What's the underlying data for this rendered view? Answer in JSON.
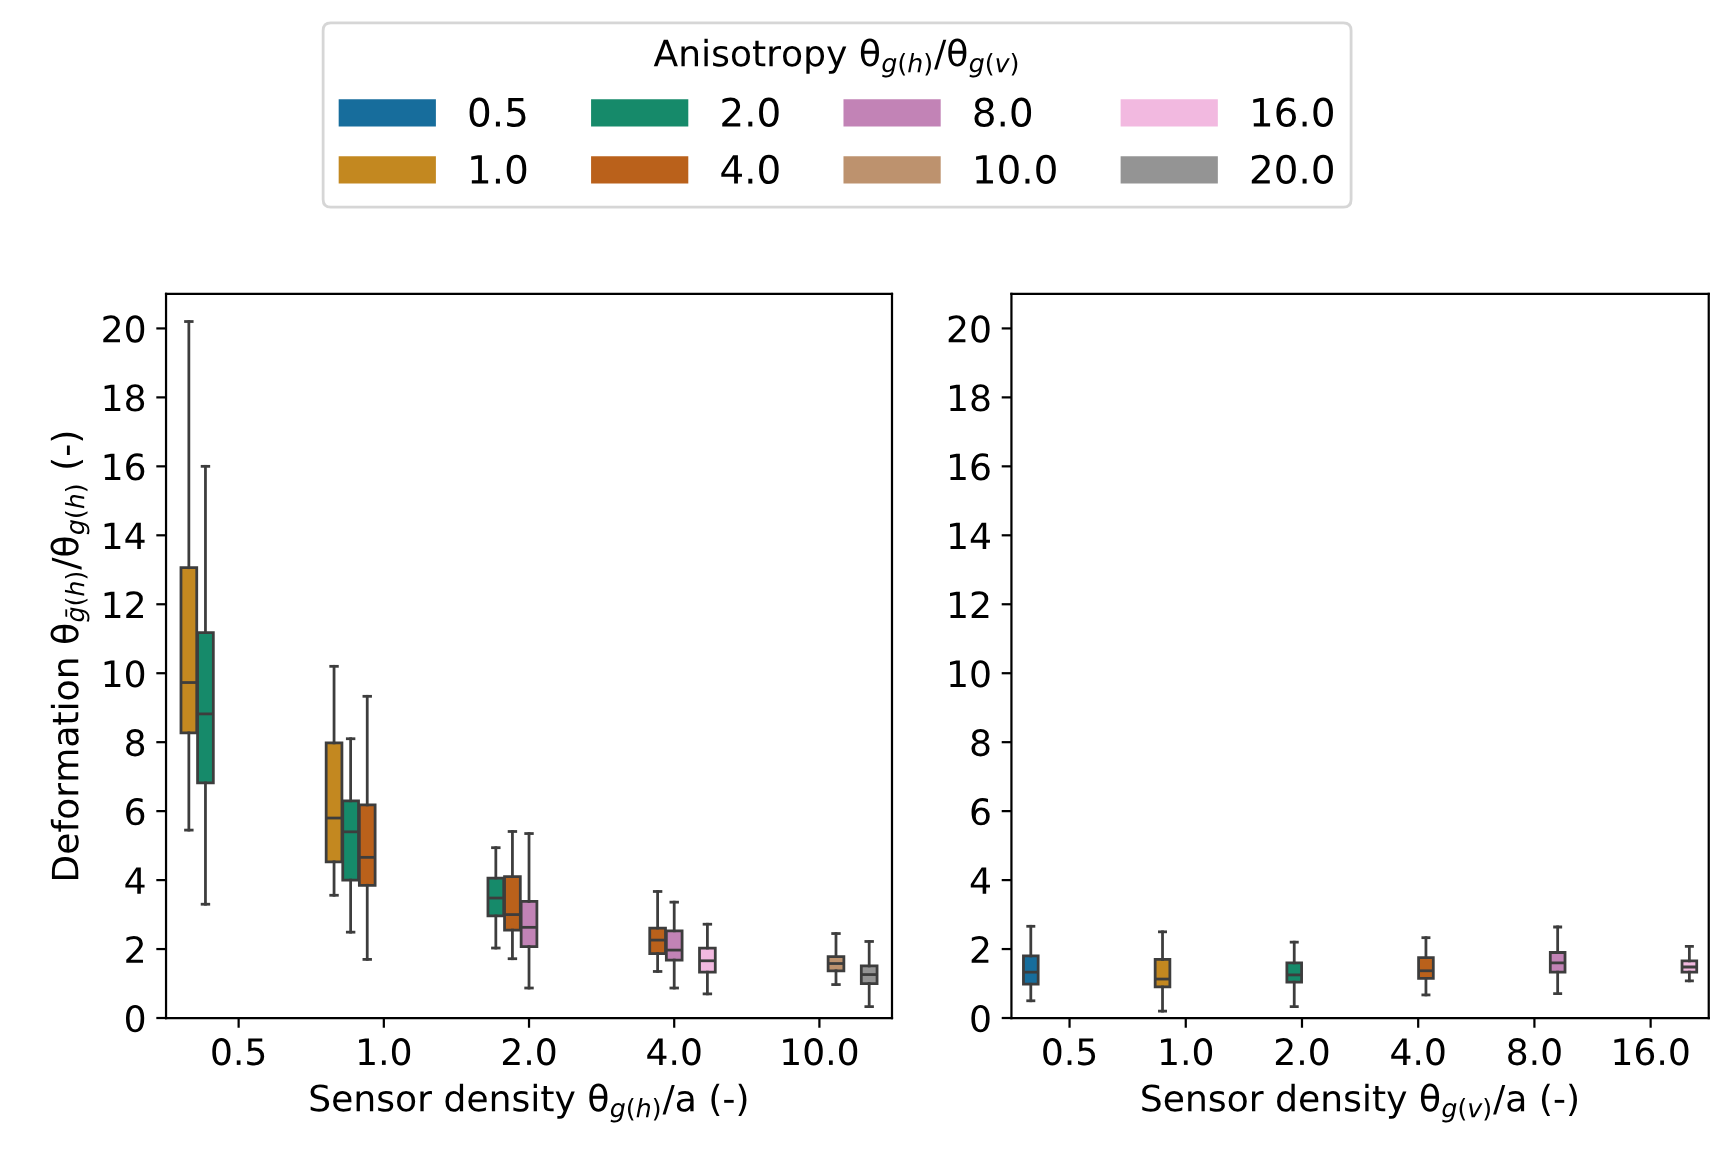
{
  "chart_data": [
    {
      "type": "box",
      "xlabel": "Sensor density θ$_{g(h)}$/a (-)",
      "ylabel": "Deformation θ$_{ḡ(h)}$/θ$_{g(h)}$ (-)",
      "legend_title": "Anisotropy θ$_{g(h)}$/θ$_{g(v)}$",
      "legend": "top",
      "grid": false,
      "ylim": [
        0,
        21
      ],
      "yticks": [
        0,
        2,
        4,
        6,
        8,
        10,
        12,
        14,
        16,
        18,
        20
      ],
      "categories": [
        "0.5",
        "1.0",
        "2.0",
        "4.0",
        "10.0"
      ],
      "series": [
        {
          "name": "0.5",
          "color": "#176d9c",
          "boxes": [
            null,
            null,
            null,
            null,
            null
          ]
        },
        {
          "name": "1.0",
          "color": "#c38820",
          "boxes": [
            {
              "low": 5.45,
              "q1": 8.27,
              "median": 9.73,
              "q3": 13.06,
              "high": 20.2
            },
            {
              "low": 3.56,
              "q1": 4.53,
              "median": 5.8,
              "q3": 7.98,
              "high": 10.2
            },
            null,
            null,
            null
          ]
        },
        {
          "name": "2.0",
          "color": "#168a6a",
          "boxes": [
            {
              "low": 3.3,
              "q1": 6.82,
              "median": 8.82,
              "q3": 11.18,
              "high": 16.0
            },
            {
              "low": 2.49,
              "q1": 4.0,
              "median": 5.4,
              "q3": 6.3,
              "high": 8.1
            },
            {
              "low": 2.03,
              "q1": 2.96,
              "median": 3.48,
              "q3": 4.06,
              "high": 4.94
            },
            null,
            null
          ]
        },
        {
          "name": "4.0",
          "color": "#ba611b",
          "boxes": [
            null,
            {
              "low": 1.7,
              "q1": 3.85,
              "median": 4.66,
              "q3": 6.18,
              "high": 9.33
            },
            {
              "low": 1.72,
              "q1": 2.55,
              "median": 3.0,
              "q3": 4.1,
              "high": 5.41
            },
            {
              "low": 1.35,
              "q1": 1.87,
              "median": 2.26,
              "q3": 2.61,
              "high": 3.67
            },
            null
          ]
        },
        {
          "name": "8.0",
          "color": "#c283b6",
          "boxes": [
            null,
            null,
            {
              "low": 0.87,
              "q1": 2.07,
              "median": 2.63,
              "q3": 3.38,
              "high": 5.35
            },
            {
              "low": 0.87,
              "q1": 1.68,
              "median": 1.97,
              "q3": 2.53,
              "high": 3.36
            },
            null
          ]
        },
        {
          "name": "10.0",
          "color": "#bd926e",
          "boxes": [
            null,
            null,
            null,
            null,
            {
              "low": 0.97,
              "q1": 1.37,
              "median": 1.58,
              "q3": 1.78,
              "high": 2.45
            }
          ]
        },
        {
          "name": "16.0",
          "color": "#f2b9e0",
          "boxes": [
            null,
            null,
            null,
            {
              "low": 0.7,
              "q1": 1.33,
              "median": 1.66,
              "q3": 2.03,
              "high": 2.72
            },
            null
          ]
        },
        {
          "name": "20.0",
          "color": "#949494",
          "boxes": [
            null,
            null,
            null,
            null,
            {
              "low": 0.33,
              "q1": 1.0,
              "median": 1.26,
              "q3": 1.51,
              "high": 2.22
            }
          ]
        }
      ]
    },
    {
      "type": "box",
      "xlabel": "Sensor density θ$_{g(v)}$/a (-)",
      "grid": false,
      "ylim": [
        0,
        21
      ],
      "yticks": [
        0,
        2,
        4,
        6,
        8,
        10,
        12,
        14,
        16,
        18,
        20
      ],
      "categories": [
        "0.5",
        "1.0",
        "2.0",
        "4.0",
        "8.0",
        "16.0"
      ],
      "series": [
        {
          "color": "#176d9c",
          "boxes": [
            {
              "low": 0.5,
              "q1": 0.98,
              "median": 1.33,
              "q3": 1.8,
              "high": 2.66
            },
            null,
            null,
            null,
            null,
            null
          ]
        },
        {
          "color": "#c38820",
          "boxes": [
            null,
            {
              "low": 0.2,
              "q1": 0.9,
              "median": 1.13,
              "q3": 1.7,
              "high": 2.5
            },
            null,
            null,
            null,
            null
          ]
        },
        {
          "color": "#168a6a",
          "boxes": [
            null,
            null,
            {
              "low": 0.33,
              "q1": 1.04,
              "median": 1.25,
              "q3": 1.6,
              "high": 2.2
            },
            null,
            null,
            null
          ]
        },
        {
          "color": "#ba611b",
          "boxes": [
            null,
            null,
            null,
            {
              "low": 0.67,
              "q1": 1.15,
              "median": 1.37,
              "q3": 1.75,
              "high": 2.33
            },
            null,
            null
          ]
        },
        {
          "color": "#c283b6",
          "boxes": [
            null,
            null,
            null,
            null,
            {
              "low": 0.71,
              "q1": 1.33,
              "median": 1.6,
              "q3": 1.9,
              "high": 2.64
            },
            null
          ]
        },
        {
          "color": "#f2b9e0",
          "boxes": [
            null,
            null,
            null,
            null,
            null,
            {
              "low": 1.08,
              "q1": 1.33,
              "median": 1.48,
              "q3": 1.66,
              "high": 2.08
            }
          ]
        }
      ]
    }
  ]
}
